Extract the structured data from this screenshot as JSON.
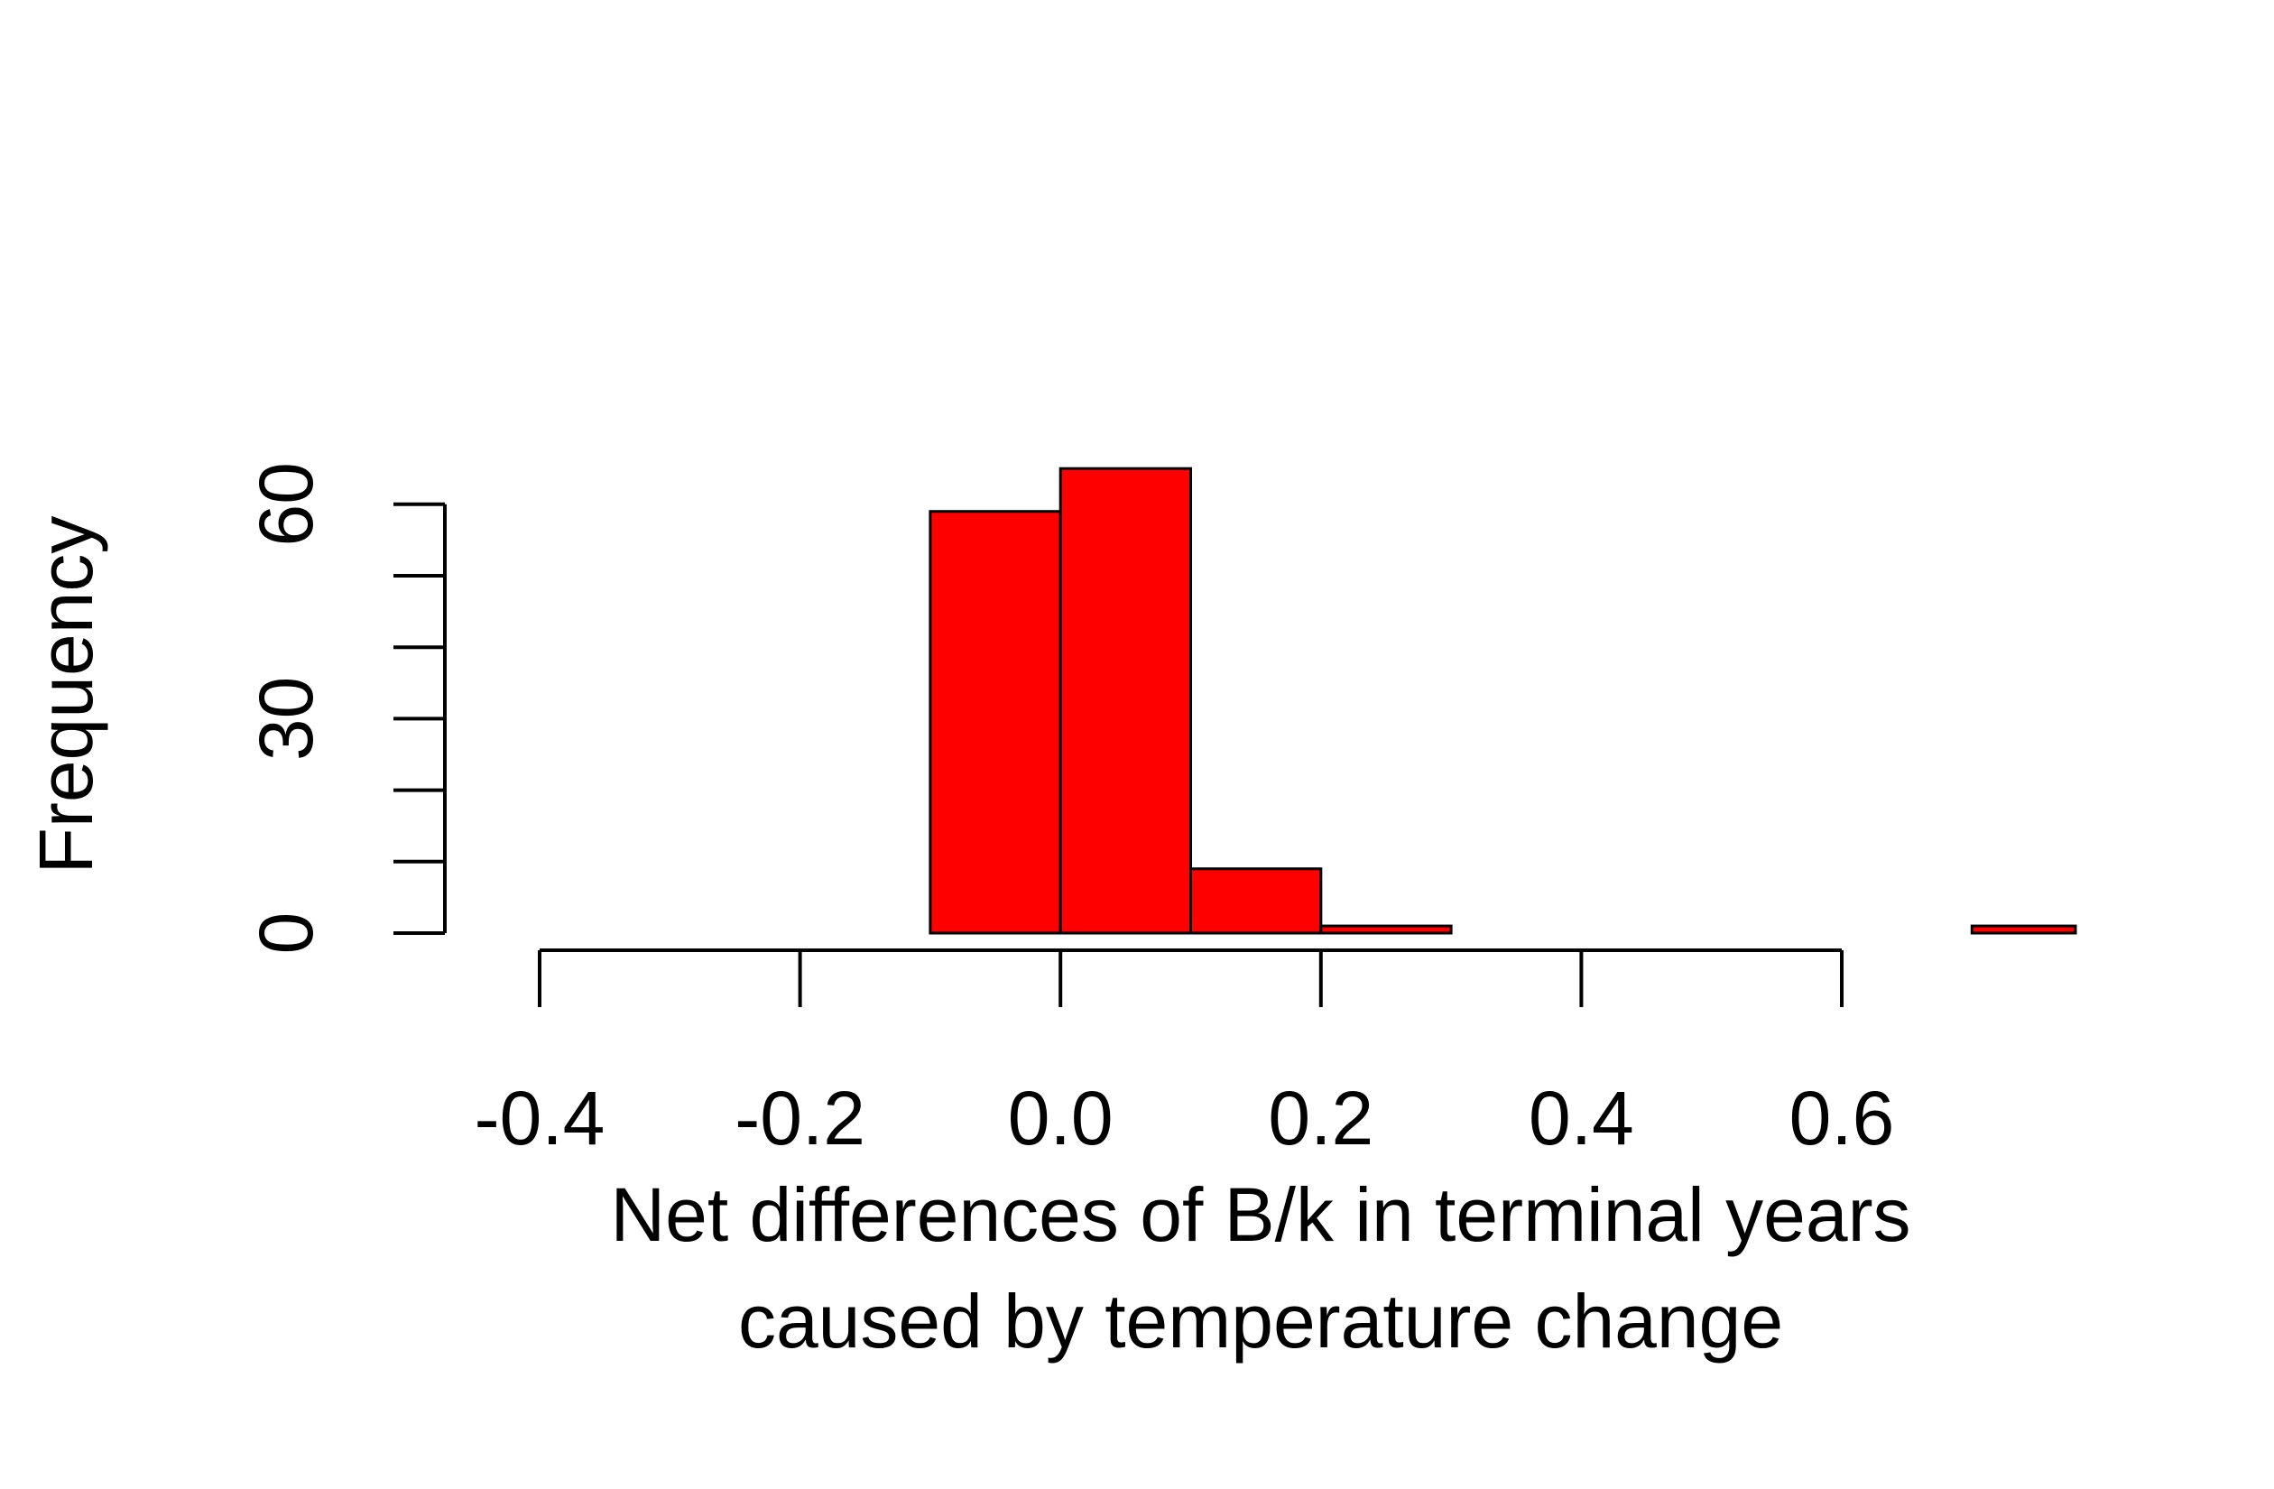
{
  "chart_data": {
    "type": "bar",
    "subtype": "histogram",
    "bin_edges": [
      -0.1,
      0.0,
      0.1,
      0.2,
      0.3,
      0.4,
      0.5,
      0.6,
      0.7,
      0.8
    ],
    "values": [
      59,
      65,
      9,
      1,
      0,
      0,
      0,
      0,
      1
    ],
    "xlabel": "Net differences of B/k in terminal years\ncaused by temperature change",
    "xlabel_lines": [
      "Net differences of B/k in terminal years",
      "caused by temperature change"
    ],
    "ylabel": "Frequency",
    "x_ticks": [
      -0.4,
      -0.2,
      0.0,
      0.2,
      0.4,
      0.6
    ],
    "x_tick_labels": [
      "-0.4",
      "-0.2",
      "0.0",
      "0.2",
      "0.4",
      "0.6"
    ],
    "y_ticks": [
      0,
      10,
      20,
      30,
      40,
      50,
      60
    ],
    "y_tick_labels": [
      "0",
      "",
      "",
      "30",
      "",
      "",
      "60"
    ],
    "xlim": [
      -0.4,
      0.8
    ],
    "ylim": [
      0,
      65
    ],
    "grid": false,
    "colors": {
      "bar_fill": "#ff0000",
      "bar_stroke": "#000000",
      "axis": "#000000"
    }
  }
}
